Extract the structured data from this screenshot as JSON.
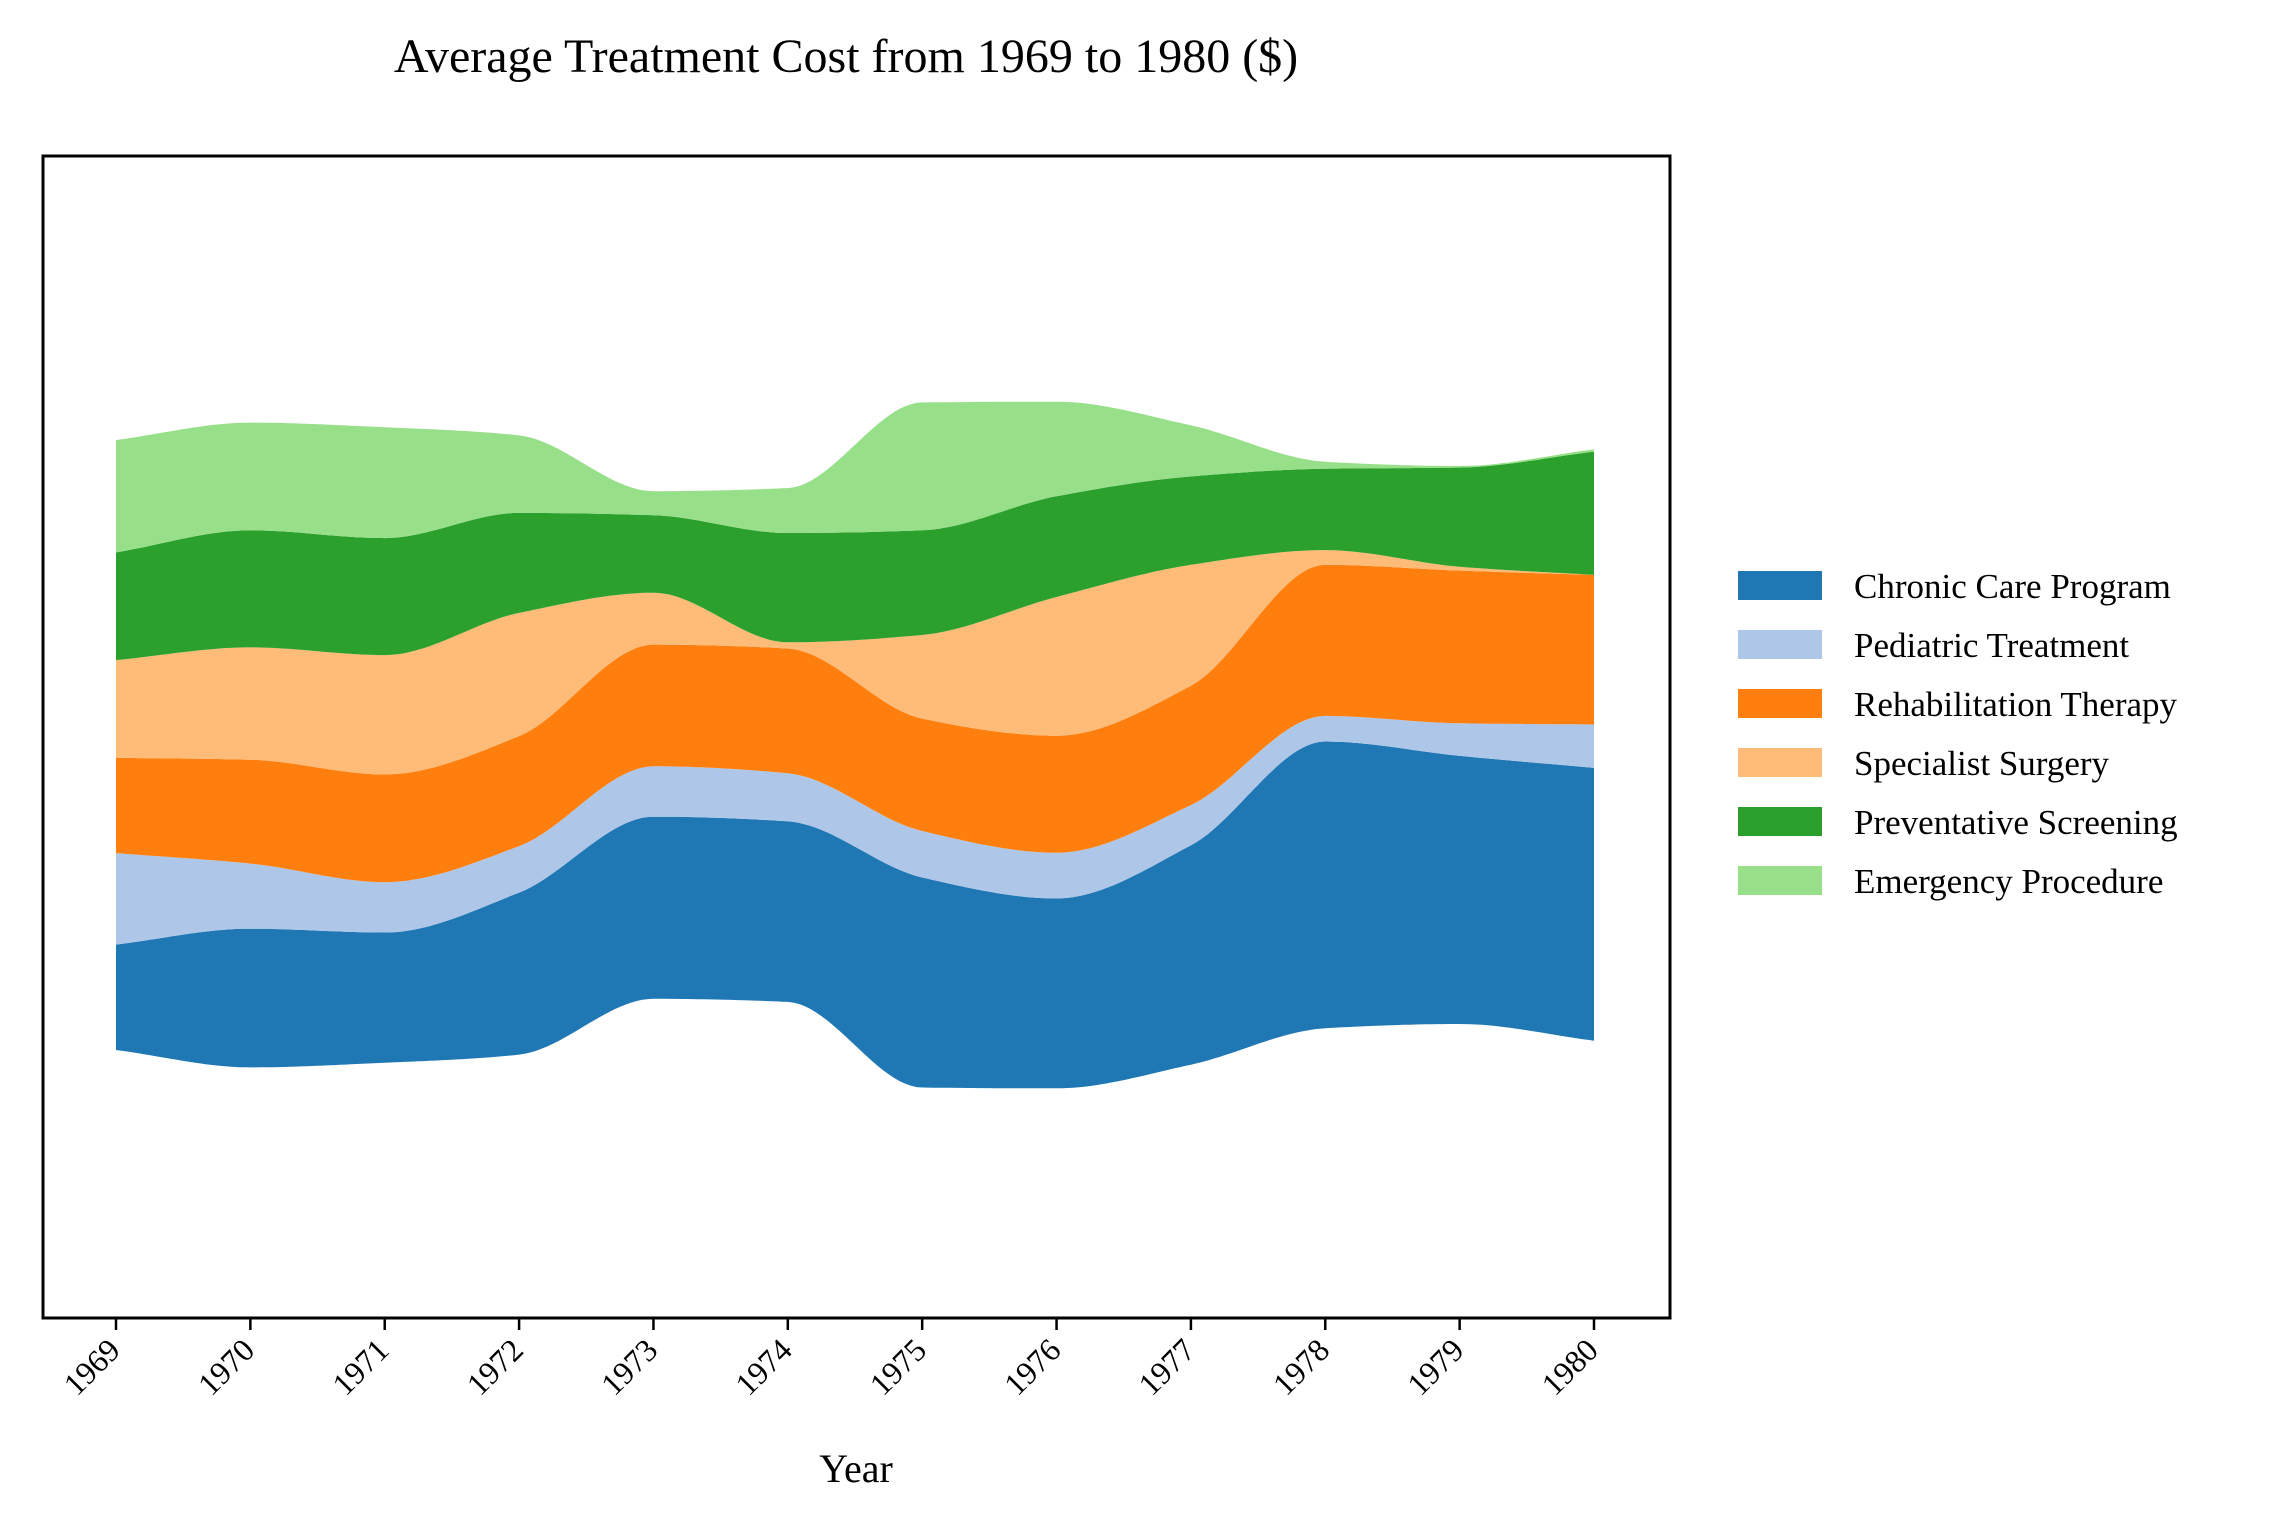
{
  "chart_data": {
    "type": "area",
    "subtype": "streamgraph",
    "title": "Average Treatment Cost from 1969 to 1980 ($)",
    "xlabel": "Year",
    "ylabel": "",
    "y_axis_ticks_visible": false,
    "grid": false,
    "legend_position": "right",
    "x": [
      "1969",
      "1970",
      "1971",
      "1972",
      "1973",
      "1974",
      "1975",
      "1976",
      "1977",
      "1978",
      "1979",
      "1980"
    ],
    "series": [
      {
        "name": "Chronic Care Program",
        "color": "#1f77b4",
        "values": [
          1360,
          1790,
          1680,
          2090,
          2350,
          2330,
          2710,
          2450,
          2830,
          3700,
          3460,
          3520
        ]
      },
      {
        "name": "Pediatric Treatment",
        "color": "#aec7e8",
        "values": [
          1180,
          840,
          650,
          600,
          650,
          620,
          600,
          590,
          520,
          330,
          420,
          560
        ]
      },
      {
        "name": "Rehabilitation Therapy",
        "color": "#ff7f0e",
        "values": [
          1230,
          1340,
          1390,
          1420,
          1570,
          1610,
          1450,
          1510,
          1540,
          1950,
          1970,
          1930
        ]
      },
      {
        "name": "Specialist Surgery",
        "color": "#ffbb78",
        "values": [
          1260,
          1450,
          1540,
          1590,
          670,
          80,
          1080,
          1790,
          1560,
          190,
          50,
          0
        ]
      },
      {
        "name": "Preventative Screening",
        "color": "#2ca02c",
        "values": [
          1390,
          1510,
          1510,
          1290,
          1000,
          1410,
          1350,
          1300,
          1140,
          1050,
          1280,
          1590
        ]
      },
      {
        "name": "Emergency Procedure",
        "color": "#98df8a",
        "values": [
          1450,
          1390,
          1430,
          1000,
          310,
          580,
          1650,
          1220,
          660,
          90,
          20,
          30
        ]
      }
    ]
  }
}
